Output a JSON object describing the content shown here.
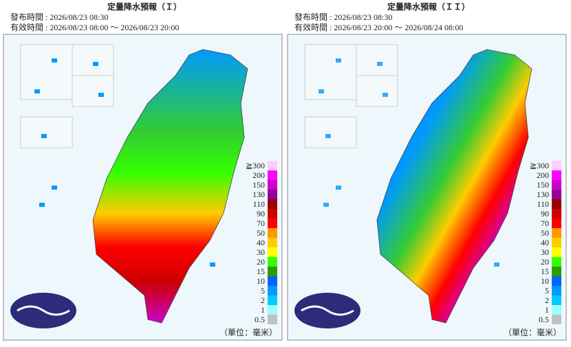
{
  "panels": [
    {
      "title": "定量降水預報（Ｉ）",
      "issued": "發布時間 : 2026/08/23 08:30",
      "valid": "有效時間 : 2026/08/23 08:00 ～ 2026/08/23 20:00",
      "unit": "（單位：毫米）"
    },
    {
      "title": "定量降水預報（ＩＩ）",
      "issued": "發布時間 : 2026/08/23 08:30",
      "valid": "有效時間 : 2026/08/23 20:00 ～ 2026/08/24 08:00",
      "unit": "（單位：毫米）"
    }
  ],
  "legend": [
    {
      "label": "≧300",
      "color": "#ffccff"
    },
    {
      "label": "200",
      "color": "#ff00ff"
    },
    {
      "label": "150",
      "color": "#cc00cc"
    },
    {
      "label": "130",
      "color": "#990099"
    },
    {
      "label": "110",
      "color": "#990000"
    },
    {
      "label": "90",
      "color": "#cc0000"
    },
    {
      "label": "70",
      "color": "#ff0000"
    },
    {
      "label": "50",
      "color": "#ff9900"
    },
    {
      "label": "40",
      "color": "#ffcc00"
    },
    {
      "label": "30",
      "color": "#ffff00"
    },
    {
      "label": "20",
      "color": "#33ff00"
    },
    {
      "label": "15",
      "color": "#339900"
    },
    {
      "label": "10",
      "color": "#0066ff"
    },
    {
      "label": "5",
      "color": "#0099ff"
    },
    {
      "label": "2",
      "color": "#00ccff"
    },
    {
      "label": "1",
      "color": "#99ffff"
    },
    {
      "label": "0.5",
      "color": "#c1c1c1"
    }
  ]
}
